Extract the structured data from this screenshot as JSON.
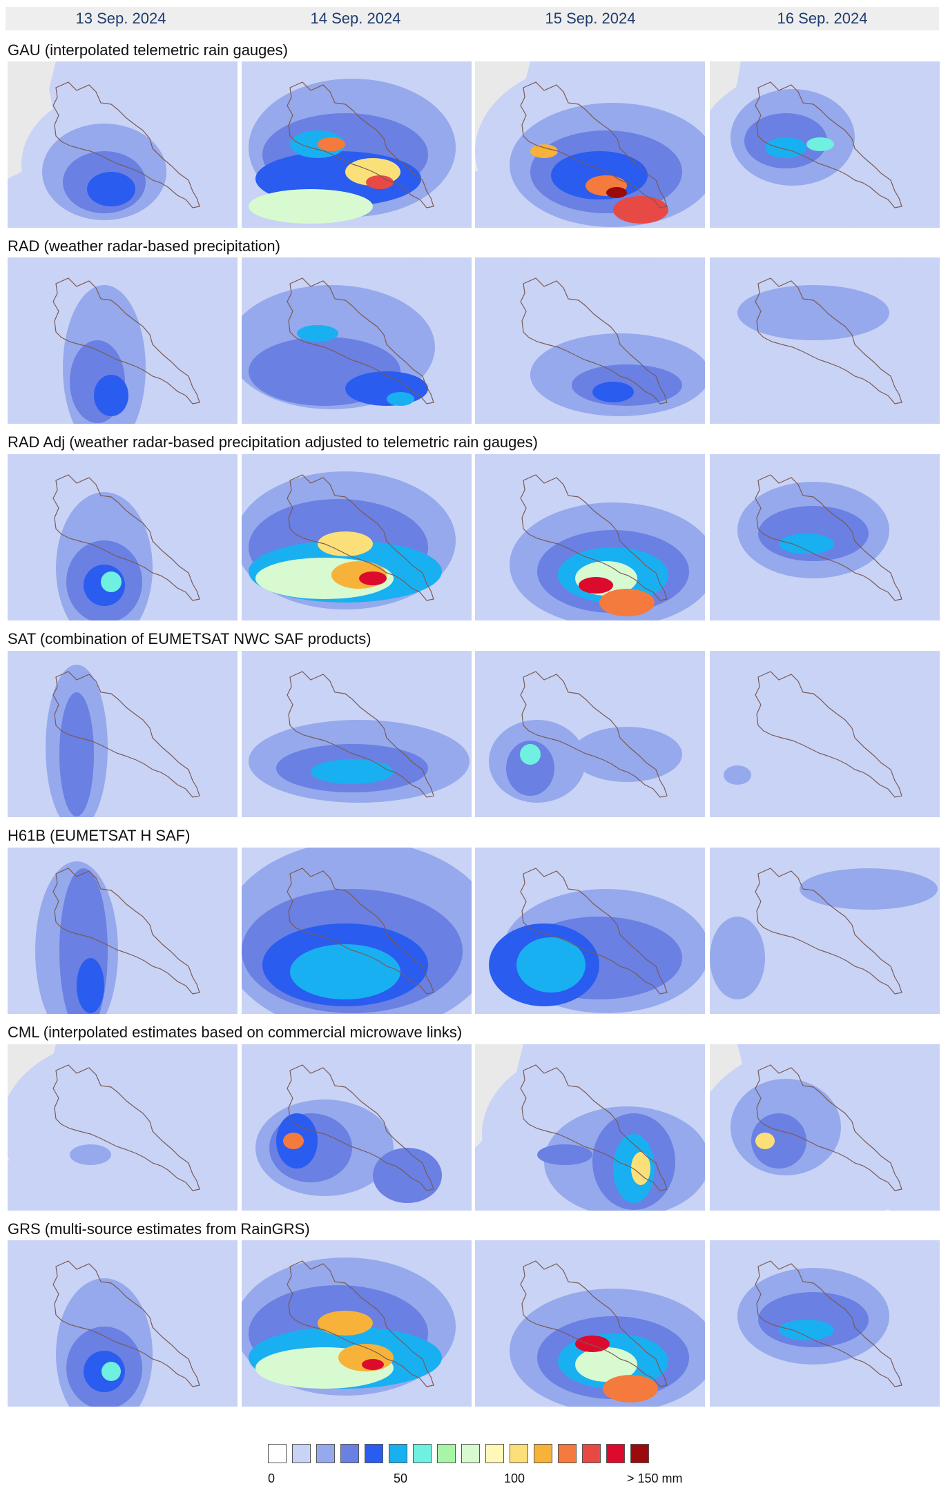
{
  "dates": [
    "13 Sep. 2024",
    "14 Sep. 2024",
    "15 Sep. 2024",
    "16 Sep. 2024"
  ],
  "rows": [
    {
      "title": "GAU (interpolated telemetric rain gauges)"
    },
    {
      "title": "RAD (weather radar-based precipitation)"
    },
    {
      "title": "RAD Adj (weather radar-based precipitation adjusted to telemetric rain gauges)"
    },
    {
      "title": "SAT (combination of EUMETSAT NWC SAF products)"
    },
    {
      "title": "H61B (EUMETSAT H SAF)"
    },
    {
      "title": "CML (interpolated estimates based on commercial microwave links)"
    },
    {
      "title": "GRS (multi-source estimates from RainGRS)"
    }
  ],
  "legend": {
    "colors": [
      "#ffffff",
      "#c9d3f5",
      "#95a9ec",
      "#6a80e2",
      "#2a5cf0",
      "#19b0f2",
      "#6ff0e0",
      "#a8f5a8",
      "#d8fad0",
      "#fff8b8",
      "#fbe07a",
      "#f7b23a",
      "#f47a3d",
      "#e74a44",
      "#dc0a2c",
      "#9b0b0b"
    ],
    "ticks": [
      "0",
      "50",
      "100",
      "> 150 mm"
    ]
  },
  "colors": {
    "no_data": "#e9e9e9",
    "boundary": "#7a5a55",
    "header_bg": "#eeeeee",
    "date_text": "#1f3c6e"
  }
}
